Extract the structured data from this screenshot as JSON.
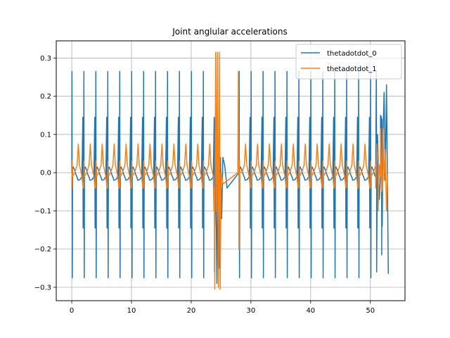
{
  "chart_data": {
    "type": "line",
    "title": "Joint anglular accelerations",
    "xlabel": "",
    "ylabel": "",
    "xlim": [
      -2.6,
      55.8
    ],
    "ylim": [
      -0.335,
      0.345
    ],
    "xticks": [
      0,
      10,
      20,
      30,
      40,
      50
    ],
    "xtick_labels": [
      "0",
      "10",
      "20",
      "30",
      "40",
      "50"
    ],
    "yticks": [
      -0.3,
      -0.2,
      -0.1,
      0.0,
      0.1,
      0.2,
      0.3
    ],
    "ytick_labels": [
      "−0.3",
      "−0.2",
      "−0.1",
      "0.0",
      "0.1",
      "0.2",
      "0.3"
    ],
    "grid": true,
    "legend_position": "upper right",
    "series": [
      {
        "name": "thetadotdot_0",
        "color": "#1f77b4",
        "pattern": {
          "period": 2.0,
          "count": 26,
          "start": 0.0,
          "points": [
            [
              0.0,
              0.0
            ],
            [
              0.03,
              0.265
            ],
            [
              0.06,
              -0.01
            ],
            [
              0.09,
              -0.275
            ],
            [
              0.13,
              0.01
            ],
            [
              0.25,
              0.015
            ],
            [
              0.45,
              0.008
            ],
            [
              0.7,
              -0.005
            ],
            [
              0.9,
              -0.012
            ],
            [
              1.05,
              -0.02
            ],
            [
              1.4,
              -0.018
            ],
            [
              1.7,
              -0.01
            ],
            [
              1.85,
              0.145
            ],
            [
              1.9,
              -0.145
            ],
            [
              1.95,
              0.14
            ],
            [
              1.99,
              -0.14
            ]
          ]
        },
        "glitches": [
          [
            23.9,
            -0.26
          ],
          [
            24.1,
            0.03
          ],
          [
            24.3,
            -0.29
          ],
          [
            24.5,
            0.05
          ],
          [
            24.7,
            -0.25
          ],
          [
            24.9,
            0.04
          ],
          [
            25.1,
            -0.12
          ],
          [
            25.3,
            0.04
          ],
          [
            25.6,
            0.02
          ],
          [
            26.0,
            -0.04
          ]
        ],
        "tail": [
          [
            50.9,
            0.0
          ],
          [
            51.0,
            0.265
          ],
          [
            51.05,
            -0.26
          ],
          [
            51.2,
            0.1
          ],
          [
            51.5,
            -0.07
          ],
          [
            51.7,
            0.15
          ],
          [
            51.9,
            -0.215
          ],
          [
            52.1,
            0.085
          ],
          [
            52.3,
            0.21
          ],
          [
            52.5,
            -0.02
          ],
          [
            52.7,
            0.23
          ],
          [
            52.85,
            0.0
          ],
          [
            53.0,
            -0.265
          ]
        ]
      },
      {
        "name": "thetadotdot_1",
        "color": "#ff7f0e",
        "pattern": {
          "period": 2.0,
          "count": 26,
          "start": 0.0,
          "points": [
            [
              0.0,
              -0.04
            ],
            [
              0.05,
              0.03
            ],
            [
              0.1,
              -0.01
            ],
            [
              0.5,
              0.0
            ],
            [
              0.9,
              0.02
            ],
            [
              1.1,
              0.075
            ],
            [
              1.3,
              0.02
            ],
            [
              1.7,
              -0.01
            ],
            [
              1.9,
              -0.04
            ],
            [
              2.0,
              -0.04
            ]
          ]
        },
        "glitches": [
          [
            23.8,
            -0.1
          ],
          [
            23.95,
            -0.305
          ],
          [
            24.1,
            0.315
          ],
          [
            24.25,
            -0.1
          ],
          [
            24.4,
            0.315
          ],
          [
            24.55,
            -0.3
          ],
          [
            24.7,
            0.315
          ],
          [
            24.85,
            -0.305
          ],
          [
            25.0,
            0.0
          ],
          [
            25.3,
            -0.03
          ],
          [
            27.8,
            0.0
          ],
          [
            27.9,
            0.265
          ],
          [
            28.0,
            -0.2
          ],
          [
            28.1,
            0.0
          ],
          [
            28.3,
            0.0
          ]
        ],
        "tail": [
          [
            50.9,
            -0.04
          ],
          [
            51.1,
            0.07
          ],
          [
            51.3,
            -0.1
          ],
          [
            51.5,
            0.02
          ],
          [
            51.7,
            0.115
          ],
          [
            51.9,
            -0.05
          ],
          [
            52.1,
            0.115
          ],
          [
            52.3,
            -0.02
          ],
          [
            52.5,
            0.06
          ],
          [
            52.7,
            -0.1
          ],
          [
            52.9,
            0.0
          ]
        ]
      }
    ]
  }
}
